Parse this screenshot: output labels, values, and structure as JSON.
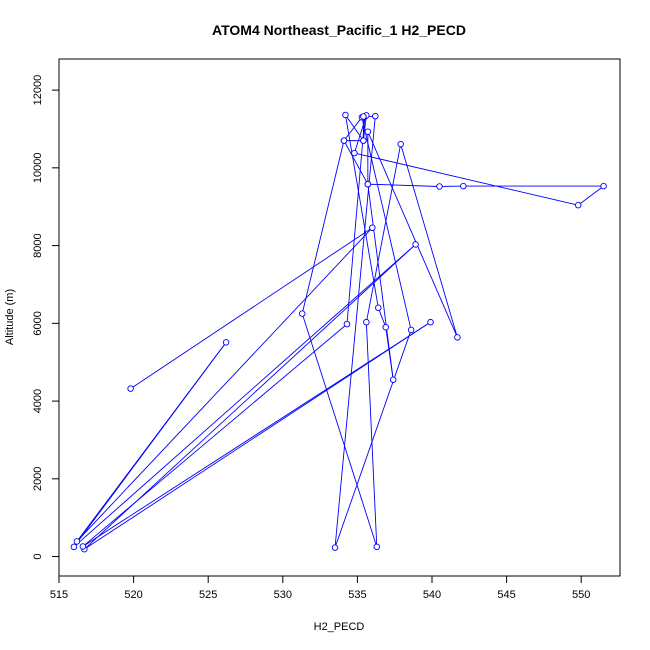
{
  "chart_data": {
    "type": "line",
    "title": "ATOM4 Northeast_Pacific_1 H2_PECD",
    "xlabel": "H2_PECD",
    "ylabel": "Altitude (m)",
    "xlim": [
      515,
      552.6
    ],
    "ylim": [
      -500,
      12800
    ],
    "xticks": [
      515,
      520,
      525,
      530,
      535,
      540,
      545,
      550
    ],
    "yticks": [
      0,
      2000,
      4000,
      6000,
      8000,
      10000,
      12000
    ],
    "series": [
      {
        "color": "#0000ff",
        "marker": "open-circle",
        "x": [
          519.8,
          536.0,
          516.2,
          526.2,
          516.0,
          538.9,
          516.7,
          539.9,
          516.6,
          534.3,
          535.5,
          536.2,
          533.5,
          538.6,
          535.3,
          534.1,
          531.3,
          536.3,
          535.6,
          537.9,
          541.7,
          535.7,
          535.7,
          540.5,
          542.1,
          551.5,
          549.8,
          534.8,
          535.6,
          535.4,
          534.2,
          536.4,
          536.9,
          537.4,
          535.7,
          534.1,
          535.4,
          535.4
        ],
        "y": [
          4320,
          8460,
          390,
          5510,
          250,
          8030,
          190,
          6030,
          260,
          5980,
          11320,
          11330,
          230,
          5830,
          11300,
          10700,
          6250,
          250,
          6030,
          10610,
          5640,
          10930,
          9580,
          9520,
          9530,
          9530,
          9040,
          10380,
          11350,
          10700,
          11360,
          6400,
          5900,
          4550,
          9580,
          10700,
          10700,
          11320
        ]
      }
    ]
  }
}
